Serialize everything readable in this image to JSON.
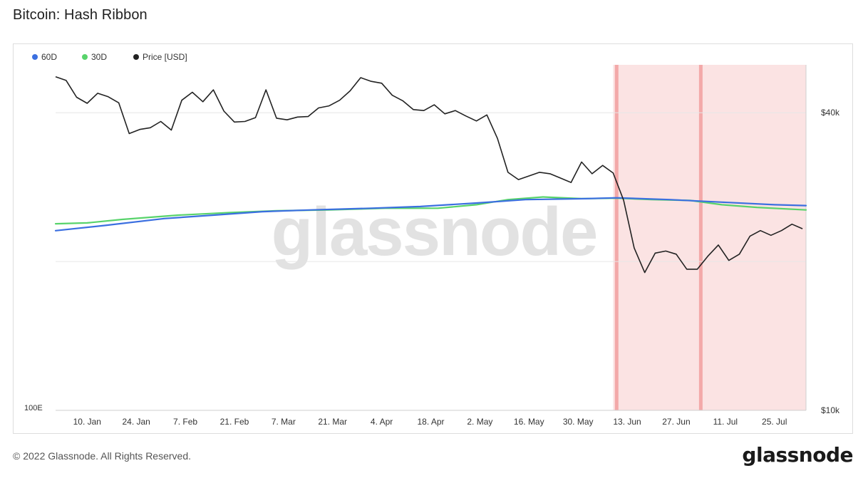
{
  "page": {
    "title": "Bitcoin: Hash Ribbon",
    "copyright": "© 2022 Glassnode. All Rights Reserved.",
    "footer_logo": "glassnode",
    "watermark": "glassnode"
  },
  "chart_data": {
    "type": "line",
    "title": "Bitcoin: Hash Ribbon",
    "legend": {
      "placement": "top-left",
      "entries": [
        {
          "name": "60D",
          "color": "#3b6fe0"
        },
        {
          "name": "30D",
          "color": "#58d36b"
        },
        {
          "name": "Price [USD]",
          "color": "#222222"
        }
      ]
    },
    "x_ticks": [
      "10. Jan",
      "24. Jan",
      "7. Feb",
      "21. Feb",
      "7. Mar",
      "21. Mar",
      "4. Apr",
      "18. Apr",
      "2. May",
      "16. May",
      "30. May",
      "13. Jun",
      "27. Jun",
      "11. Jul",
      "25. Jul"
    ],
    "left_axis": {
      "ticks": [
        "100E"
      ]
    },
    "right_axis": {
      "scale": "log",
      "ticks": [
        "$40k",
        "$10k"
      ],
      "range": [
        10000,
        50000
      ]
    },
    "grid": {
      "horizontal": true,
      "vertical": false
    },
    "capitulation_zone": {
      "start": "2022-06-09",
      "end": "2022-08-03"
    },
    "capitulation_markers": [
      "2022-06-10",
      "2022-07-04"
    ],
    "price_series": {
      "name": "Price [USD]",
      "color": "#222222",
      "dates": [
        "2022-01-01",
        "2022-01-04",
        "2022-01-07",
        "2022-01-10",
        "2022-01-13",
        "2022-01-16",
        "2022-01-19",
        "2022-01-22",
        "2022-01-25",
        "2022-01-28",
        "2022-01-31",
        "2022-02-03",
        "2022-02-06",
        "2022-02-09",
        "2022-02-12",
        "2022-02-15",
        "2022-02-18",
        "2022-02-21",
        "2022-02-24",
        "2022-02-27",
        "2022-03-02",
        "2022-03-05",
        "2022-03-08",
        "2022-03-11",
        "2022-03-14",
        "2022-03-17",
        "2022-03-20",
        "2022-03-23",
        "2022-03-26",
        "2022-03-29",
        "2022-04-01",
        "2022-04-04",
        "2022-04-07",
        "2022-04-10",
        "2022-04-13",
        "2022-04-16",
        "2022-04-19",
        "2022-04-22",
        "2022-04-25",
        "2022-04-28",
        "2022-05-01",
        "2022-05-04",
        "2022-05-07",
        "2022-05-10",
        "2022-05-13",
        "2022-05-16",
        "2022-05-19",
        "2022-05-22",
        "2022-05-25",
        "2022-05-28",
        "2022-05-31",
        "2022-06-03",
        "2022-06-06",
        "2022-06-09",
        "2022-06-12",
        "2022-06-15",
        "2022-06-18",
        "2022-06-21",
        "2022-06-24",
        "2022-06-27",
        "2022-06-30",
        "2022-07-03",
        "2022-07-06",
        "2022-07-09",
        "2022-07-12",
        "2022-07-15",
        "2022-07-18",
        "2022-07-21",
        "2022-07-24",
        "2022-07-27",
        "2022-07-30",
        "2022-08-02"
      ],
      "values": [
        47300,
        46500,
        43000,
        41800,
        43800,
        43100,
        41900,
        36300,
        37000,
        37300,
        38400,
        36900,
        42400,
        44000,
        42100,
        44500,
        40300,
        38300,
        38400,
        39100,
        44500,
        39000,
        38700,
        39200,
        39300,
        40900,
        41300,
        42400,
        44300,
        47100,
        46300,
        45900,
        43400,
        42300,
        40600,
        40400,
        41500,
        39800,
        40400,
        39400,
        38500,
        39600,
        35500,
        30300,
        29300,
        29800,
        30300,
        30100,
        29500,
        28900,
        31800,
        30100,
        31300,
        30200,
        26600,
        21300,
        19000,
        20800,
        21000,
        20700,
        19300,
        19300,
        20500,
        21600,
        20100,
        20700,
        22500,
        23100,
        22600,
        23100,
        23800,
        23300
      ]
    },
    "series": [
      {
        "name": "60D",
        "color": "#3b6fe0",
        "dates": [
          "2022-01-01",
          "2022-01-15",
          "2022-02-01",
          "2022-02-15",
          "2022-03-01",
          "2022-03-15",
          "2022-04-01",
          "2022-04-15",
          "2022-05-01",
          "2022-05-15",
          "2022-06-01",
          "2022-06-10",
          "2022-06-25",
          "2022-07-10",
          "2022-07-25",
          "2022-08-03"
        ],
        "values": [
          204,
          207,
          211,
          213,
          215,
          216,
          217,
          218,
          220,
          222,
          222.5,
          223,
          222,
          220.5,
          219,
          218.5
        ]
      },
      {
        "name": "30D",
        "color": "#58d36b",
        "dates": [
          "2022-01-01",
          "2022-01-10",
          "2022-01-20",
          "2022-02-05",
          "2022-02-20",
          "2022-03-05",
          "2022-03-20",
          "2022-04-05",
          "2022-04-20",
          "2022-05-01",
          "2022-05-10",
          "2022-05-20",
          "2022-05-31",
          "2022-06-10",
          "2022-06-20",
          "2022-07-01",
          "2022-07-10",
          "2022-07-20",
          "2022-08-03"
        ],
        "values": [
          208,
          208.5,
          210.5,
          213,
          214.5,
          215.5,
          216,
          217,
          217,
          219,
          222,
          223.5,
          222.5,
          222.8,
          222,
          221.5,
          219,
          217.5,
          216
        ]
      }
    ]
  }
}
